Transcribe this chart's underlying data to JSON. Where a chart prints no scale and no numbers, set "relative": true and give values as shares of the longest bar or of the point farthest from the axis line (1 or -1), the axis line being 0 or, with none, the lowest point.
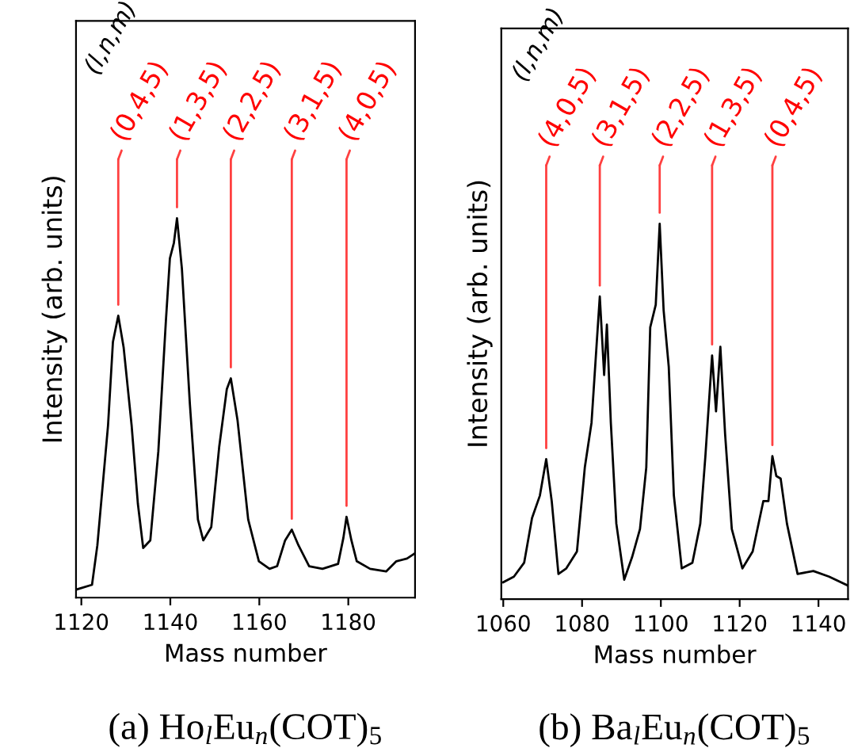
{
  "chart_data": [
    {
      "type": "line",
      "title": "(a) Ho$_{l}$Eu$_{n}$(COT)$_{5}$",
      "xlabel": "Mass number",
      "ylabel": "Intensity (arb. units)",
      "relative": true,
      "tick_labels": "x",
      "xlim": [
        1118.8,
        1195
      ],
      "xticks": [
        1120,
        1140,
        1160,
        1180
      ],
      "series": [
        {
          "color": "#000000",
          "x": [
            1118.8,
            1122.4,
            1123.6,
            1126,
            1127.1,
            1128.3,
            1129.5,
            1131.3,
            1132.7,
            1133.9,
            1135.5,
            1137.3,
            1139.0,
            1139.9,
            1140.8,
            1141.5,
            1142.6,
            1144.4,
            1146.2,
            1147.4,
            1149.2,
            1151.0,
            1152.7,
            1153.6,
            1155.1,
            1157.5,
            1159.9,
            1162.3,
            1164.0,
            1165.8,
            1167.3,
            1168.8,
            1171.2,
            1174.2,
            1177.7,
            1178.9,
            1179.6,
            1180.7,
            1181.9,
            1184.9,
            1188.5,
            1190.8,
            1193.2,
            1195.0
          ],
          "values": [
            0.021,
            0.034,
            0.138,
            0.454,
            0.674,
            0.743,
            0.66,
            0.454,
            0.248,
            0.131,
            0.151,
            0.385,
            0.729,
            0.894,
            0.935,
            1.0,
            0.867,
            0.509,
            0.206,
            0.151,
            0.186,
            0.399,
            0.55,
            0.578,
            0.468,
            0.206,
            0.096,
            0.076,
            0.083,
            0.151,
            0.179,
            0.138,
            0.083,
            0.076,
            0.089,
            0.158,
            0.213,
            0.151,
            0.096,
            0.076,
            0.069,
            0.096,
            0.103,
            0.117
          ]
        }
      ],
      "annotations": [
        "(l,n,m)",
        {
          "text": "(0,4,5)",
          "x": 1128.3,
          "y": 0.743
        },
        {
          "text": "(1,3,5)",
          "x": 1141.5,
          "y": 1.0
        },
        {
          "text": "(2,2,5)",
          "x": 1153.6,
          "y": 0.578
        },
        {
          "text": "(3,1,5)",
          "x": 1167.3,
          "y": 0.179
        },
        {
          "text": "(4,0,5)",
          "x": 1179.6,
          "y": 0.213
        }
      ]
    },
    {
      "type": "line",
      "title": "(b) Ba$_{l}$Eu$_{n}$(COT)$_{5}$",
      "xlabel": "Mass number",
      "ylabel": "Intensity (arb. units)",
      "relative": true,
      "tick_labels": "x",
      "xlim": [
        1059.5,
        1147.5
      ],
      "xticks": [
        1060,
        1080,
        1100,
        1120,
        1140
      ],
      "series": [
        {
          "color": "#000000",
          "x": [
            1060,
            1062.7,
            1065.3,
            1067.3,
            1069.3,
            1070.9,
            1072.3,
            1074,
            1076,
            1078.7,
            1080.7,
            1082.4,
            1083.7,
            1084.5,
            1085.6,
            1086.3,
            1087.3,
            1088.7,
            1090.7,
            1092.7,
            1094.7,
            1096.3,
            1097.3,
            1098.7,
            1099.7,
            1100.7,
            1102,
            1103.3,
            1105.3,
            1108,
            1110,
            1111.3,
            1113,
            1114,
            1115.1,
            1116.3,
            1118,
            1120.7,
            1123.3,
            1126,
            1127.3,
            1128.3,
            1129.3,
            1130.4,
            1132,
            1134.7,
            1138.7,
            1142.7,
            1147.3
          ],
          "values": [
            0.045,
            0.06,
            0.097,
            0.216,
            0.276,
            0.373,
            0.261,
            0.067,
            0.082,
            0.127,
            0.351,
            0.47,
            0.679,
            0.806,
            0.597,
            0.731,
            0.47,
            0.201,
            0.052,
            0.112,
            0.187,
            0.351,
            0.724,
            0.784,
            1.0,
            0.769,
            0.619,
            0.276,
            0.082,
            0.097,
            0.201,
            0.381,
            0.649,
            0.5,
            0.672,
            0.44,
            0.187,
            0.082,
            0.127,
            0.261,
            0.261,
            0.381,
            0.328,
            0.321,
            0.201,
            0.067,
            0.075,
            0.06,
            0.037
          ]
        }
      ],
      "annotations": [
        "(l,n,m)",
        {
          "text": "(4,0,5)",
          "x": 1070.9,
          "y": 0.373
        },
        {
          "text": "(3,1,5)",
          "x": 1084.5,
          "y": 0.806
        },
        {
          "text": "(2,2,5)",
          "x": 1099.7,
          "y": 1.0
        },
        {
          "text": "(1,3,5)",
          "x": 1113,
          "y": 0.649
        },
        {
          "text": "(0,4,5)",
          "x": 1128.3,
          "y": 0.381
        }
      ]
    }
  ]
}
